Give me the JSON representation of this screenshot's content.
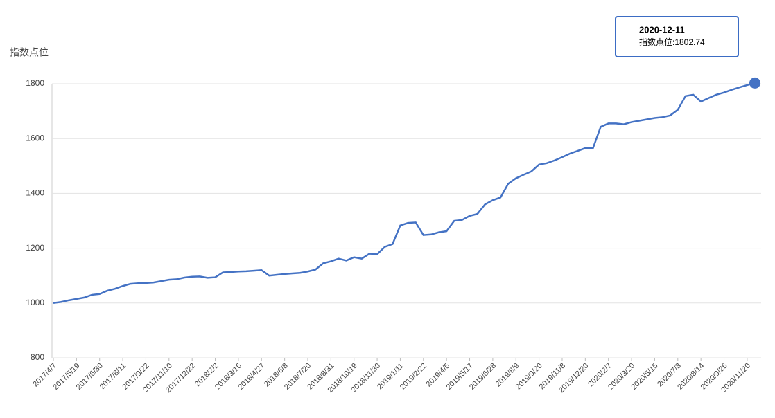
{
  "chart_data": {
    "type": "line",
    "y_label": "指数点位",
    "categories": [
      "2017/4/7",
      null,
      null,
      "2017/5/19",
      null,
      null,
      "2017/6/30",
      null,
      null,
      "2017/8/11",
      null,
      null,
      "2017/9/22",
      null,
      null,
      "2017/11/10",
      null,
      null,
      "2017/12/22",
      null,
      null,
      "2018/2/2",
      null,
      null,
      "2018/3/16",
      null,
      null,
      "2018/4/27",
      null,
      null,
      "2018/6/8",
      null,
      null,
      "2018/7/20",
      null,
      null,
      "2018/8/31",
      null,
      null,
      "2018/10/19",
      null,
      null,
      "2018/11/30",
      null,
      null,
      "2019/1/11",
      null,
      null,
      "2019/2/22",
      null,
      null,
      "2019/4/5",
      null,
      null,
      "2019/5/17",
      null,
      null,
      "2019/6/28",
      null,
      null,
      "2019/8/9",
      null,
      null,
      "2019/9/20",
      null,
      null,
      "2019/11/8",
      null,
      null,
      "2019/12/20",
      null,
      null,
      "2020/2/7",
      null,
      null,
      "2020/3/20",
      null,
      null,
      "2020/5/15",
      null,
      null,
      "2020/7/3",
      null,
      null,
      "2020/8/14",
      null,
      null,
      "2020/9/25",
      null,
      null,
      "2020/11/20",
      null
    ],
    "values": [
      1000,
      1004,
      1010,
      1015,
      1020,
      1030,
      1033,
      1045,
      1052,
      1062,
      1070,
      1072,
      1073,
      1075,
      1080,
      1085,
      1087,
      1093,
      1096,
      1097,
      1092,
      1094,
      1112,
      1113,
      1115,
      1116,
      1118,
      1120,
      1100,
      1103,
      1106,
      1108,
      1110,
      1115,
      1122,
      1145,
      1152,
      1162,
      1155,
      1167,
      1162,
      1180,
      1178,
      1205,
      1215,
      1283,
      1292,
      1294,
      1248,
      1250,
      1258,
      1262,
      1300,
      1303,
      1318,
      1325,
      1360,
      1375,
      1385,
      1435,
      1455,
      1468,
      1480,
      1505,
      1510,
      1520,
      1532,
      1545,
      1555,
      1565,
      1565,
      1643,
      1655,
      1655,
      1652,
      1660,
      1665,
      1670,
      1675,
      1678,
      1684,
      1705,
      1755,
      1760,
      1735,
      1748,
      1760,
      1768,
      1778,
      1787,
      1795,
      1802.74
    ],
    "color": "#4472c4",
    "ylim": [
      800,
      1800
    ],
    "yticks": [
      800,
      1000,
      1200,
      1400,
      1600,
      1800
    ],
    "grid": true,
    "tooltip": {
      "date": "2020-12-11",
      "text": "指数点位:1802.74"
    }
  }
}
